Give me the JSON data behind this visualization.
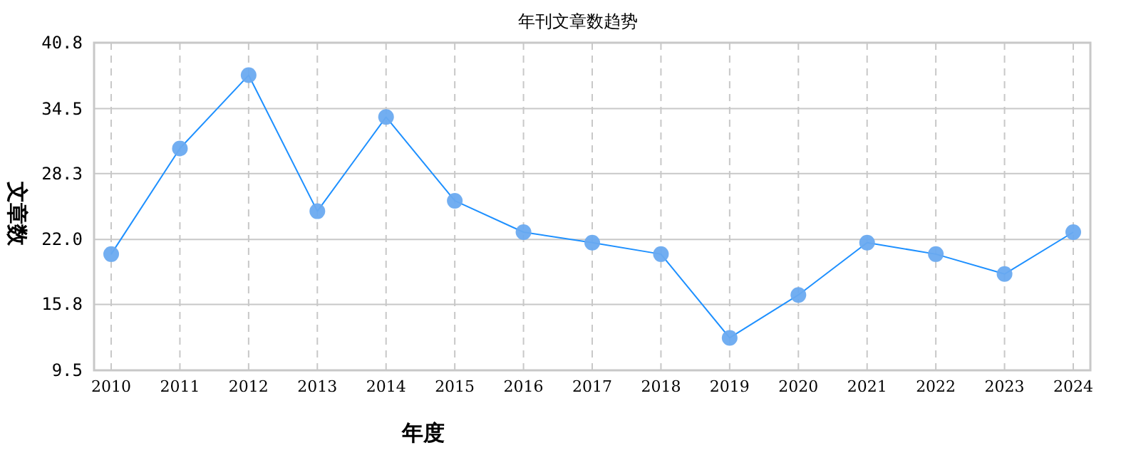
{
  "chart_data": {
    "type": "line",
    "title": "年刊文章数趋势",
    "xlabel": "年度",
    "ylabel": "文章数",
    "categories": [
      "2010",
      "2011",
      "2012",
      "2013",
      "2014",
      "2015",
      "2016",
      "2017",
      "2018",
      "2019",
      "2020",
      "2021",
      "2022",
      "2023",
      "2024"
    ],
    "series": [
      {
        "color": "#1e90ff",
        "values": [
          20.6,
          30.7,
          37.7,
          24.7,
          33.7,
          25.7,
          22.7,
          21.7,
          20.6,
          12.6,
          16.7,
          21.7,
          20.6,
          18.7,
          22.7
        ]
      }
    ],
    "ylim": [
      9.5,
      40.8
    ],
    "yticks": [
      9.5,
      15.8,
      {
        "value": 22,
        "label": "22.0"
      },
      28.3,
      34.5,
      40.8
    ],
    "grid": true,
    "marker": "circle",
    "line_style": "solid"
  }
}
